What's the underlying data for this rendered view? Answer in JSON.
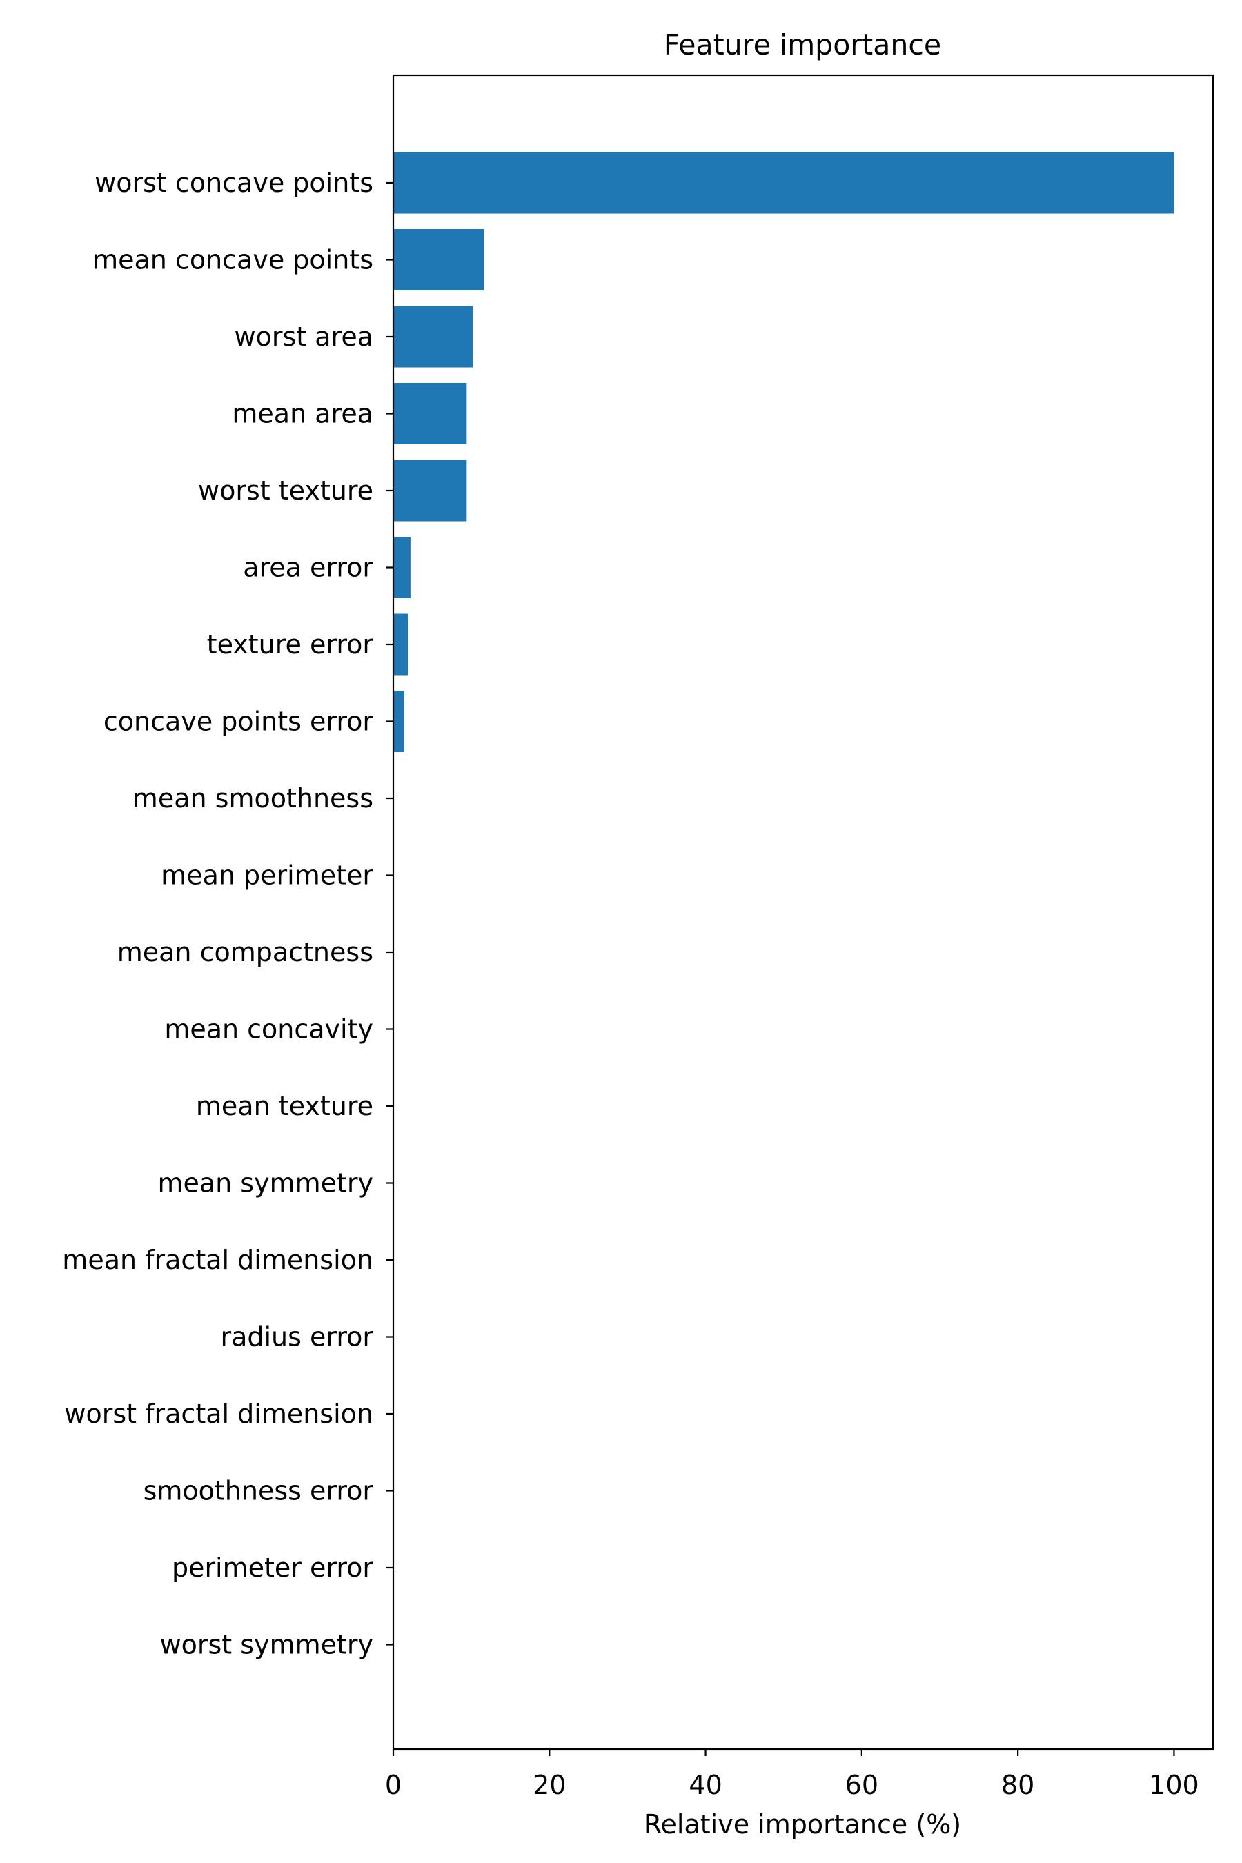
{
  "chart_data": {
    "type": "bar",
    "orientation": "horizontal",
    "title": "Feature importance",
    "xlabel": "Relative importance (%)",
    "ylabel": "",
    "xlim": [
      0,
      105
    ],
    "xticks": [
      0,
      20,
      40,
      60,
      80,
      100
    ],
    "xtick_labels": [
      "0",
      "20",
      "40",
      "60",
      "80",
      "100"
    ],
    "grid": false,
    "bar_color": "#1f77b4",
    "categories": [
      "worst concave points",
      "mean concave points",
      "worst area",
      "mean area",
      "worst texture",
      "area error",
      "texture error",
      "concave points error",
      "mean smoothness",
      "mean perimeter",
      "mean compactness",
      "mean concavity",
      "mean texture",
      "mean symmetry",
      "mean fractal dimension",
      "radius error",
      "worst fractal dimension",
      "smoothness error",
      "perimeter error",
      "worst symmetry"
    ],
    "values": [
      100,
      11.6,
      10.2,
      9.4,
      9.4,
      2.2,
      1.9,
      1.4,
      0,
      0,
      0,
      0,
      0,
      0,
      0,
      0,
      0,
      0,
      0,
      0
    ]
  }
}
